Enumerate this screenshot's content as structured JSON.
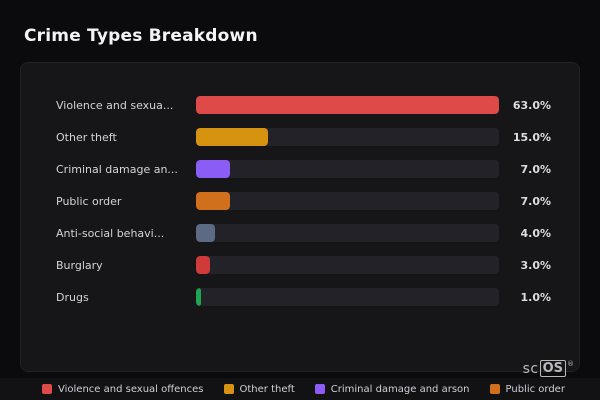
{
  "title": "Crime Types Breakdown",
  "chart_data": {
    "type": "bar",
    "orientation": "horizontal",
    "title": "Crime Types Breakdown",
    "categories": [
      "Violence and sexua...",
      "Other theft",
      "Criminal damage an...",
      "Public order",
      "Anti-social behavi...",
      "Burglary",
      "Drugs"
    ],
    "values": [
      63.0,
      15.0,
      7.0,
      7.0,
      4.0,
      3.0,
      1.0
    ],
    "value_labels": [
      "63.0%",
      "15.0%",
      "7.0%",
      "7.0%",
      "4.0%",
      "3.0%",
      "1.0%"
    ],
    "colors": [
      "#dd4a48",
      "#d6930f",
      "#8b5cf6",
      "#d1701c",
      "#5c6b83",
      "#cf3b3b",
      "#1fa552"
    ],
    "max_value": 63.0,
    "grid": false,
    "legend_position": "bottom"
  },
  "legend": {
    "items": [
      {
        "label": "Violence and sexual offences",
        "color": "#dd4a48"
      },
      {
        "label": "Other theft",
        "color": "#d6930f"
      },
      {
        "label": "Criminal damage and arson",
        "color": "#8b5cf6"
      },
      {
        "label": "Public order",
        "color": "#d1701c"
      }
    ]
  },
  "watermark": {
    "prefix": "sc",
    "boxed": "OS",
    "reg": "®"
  }
}
